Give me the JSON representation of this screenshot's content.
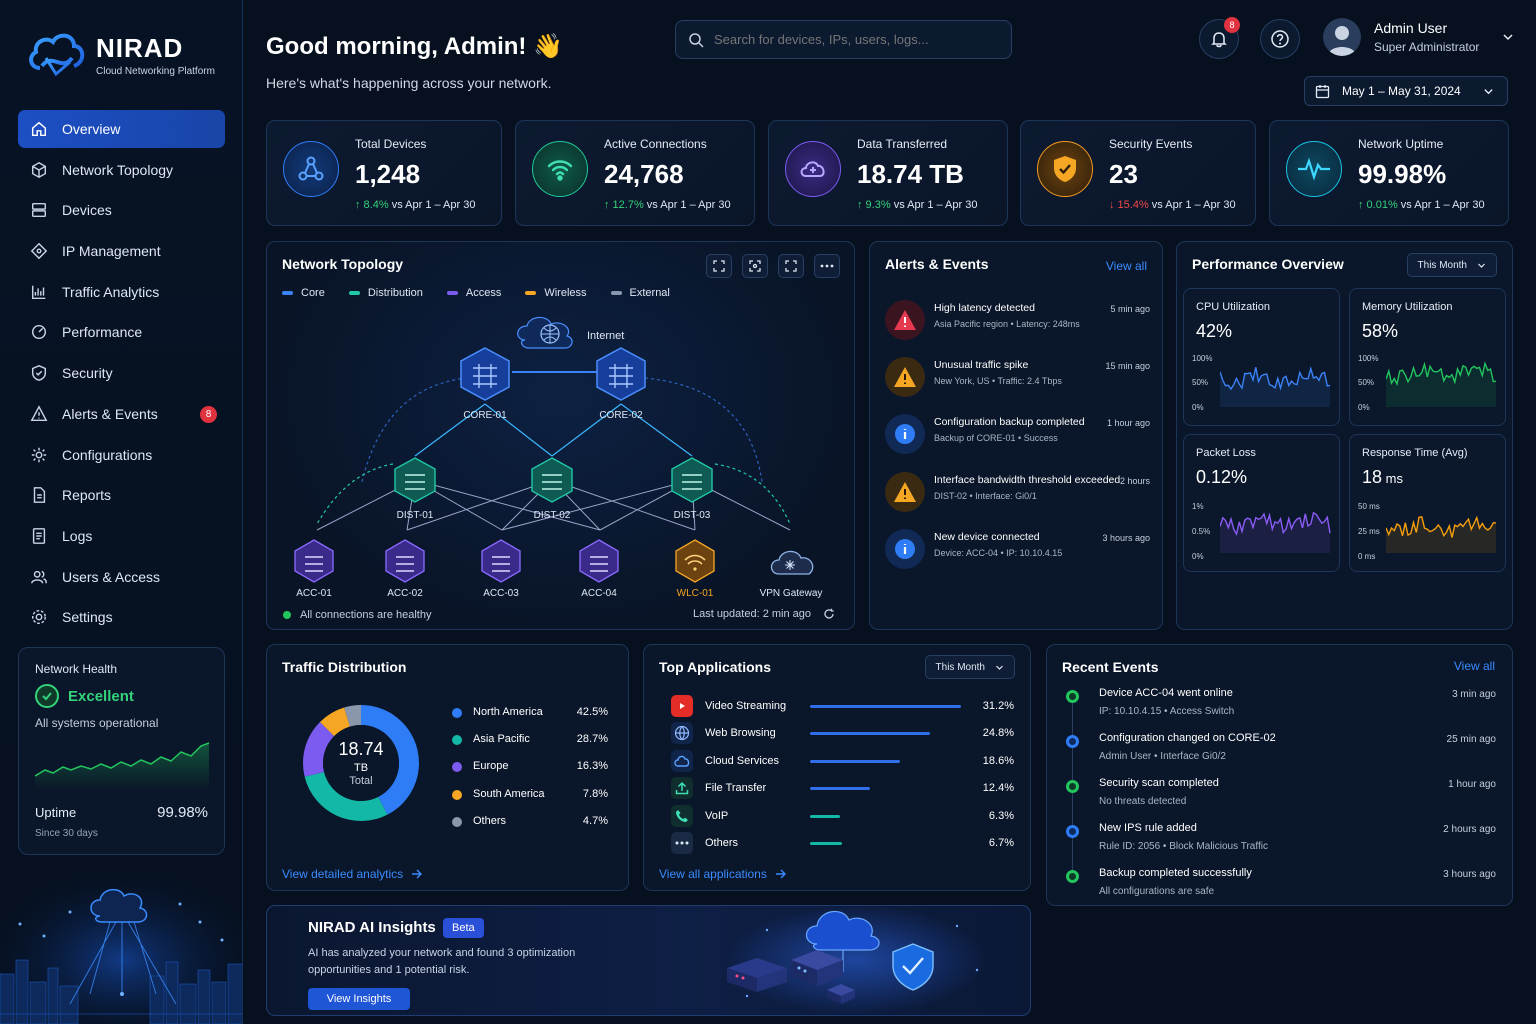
{
  "brand": {
    "name": "NIRAD",
    "tagline": "Cloud Networking Platform"
  },
  "nav": {
    "items": [
      {
        "label": "Overview",
        "icon": "home-icon"
      },
      {
        "label": "Network Topology",
        "icon": "topology-icon"
      },
      {
        "label": "Devices",
        "icon": "server-icon"
      },
      {
        "label": "IP Management",
        "icon": "ip-icon"
      },
      {
        "label": "Traffic Analytics",
        "icon": "chart-icon"
      },
      {
        "label": "Performance",
        "icon": "gauge-icon"
      },
      {
        "label": "Security",
        "icon": "shield-icon"
      },
      {
        "label": "Alerts & Events",
        "icon": "warning-icon",
        "badge": "8"
      },
      {
        "label": "Configurations",
        "icon": "gear-icon"
      },
      {
        "label": "Reports",
        "icon": "report-icon"
      },
      {
        "label": "Logs",
        "icon": "log-icon"
      },
      {
        "label": "Users & Access",
        "icon": "users-icon"
      },
      {
        "label": "Settings",
        "icon": "settings-icon"
      }
    ]
  },
  "health": {
    "title": "Network Health",
    "status": "Excellent",
    "sub": "All systems operational",
    "uptime_label": "Uptime",
    "uptime_value": "99.98%",
    "since": "Since 30 days"
  },
  "header": {
    "greeting": "Good morning, Admin! 👋",
    "subtitle": "Here's what's happening across your network.",
    "search_placeholder": "Search for devices, IPs, users, logs...",
    "notif_count": "8",
    "user_name": "Admin User",
    "user_role": "Super Administrator",
    "date_range": "May 1 – May 31, 2024"
  },
  "kpis": [
    {
      "label": "Total Devices",
      "value": "1,248",
      "change": "↑ 8.4%",
      "period": " vs Apr 1 – Apr 30",
      "dir": "up",
      "color": "#2f7df6"
    },
    {
      "label": "Active Connections",
      "value": "24,768",
      "change": "↑ 12.7%",
      "period": " vs Apr 1 – Apr 30",
      "dir": "up",
      "color": "#1fc99a"
    },
    {
      "label": "Data Transferred",
      "value": "18.74 TB",
      "change": "↑ 9.3%",
      "period": " vs Apr 1 – Apr 30",
      "dir": "up",
      "color": "#7b5cf0"
    },
    {
      "label": "Security Events",
      "value": "23",
      "change": "↓ 15.4%",
      "period": " vs Apr 1 – Apr 30",
      "dir": "down",
      "color": "#f29a1f"
    },
    {
      "label": "Network Uptime",
      "value": "99.98%",
      "change": "↑ 0.01%",
      "period": " vs Apr 1 – Apr 30",
      "dir": "up",
      "color": "#19c3e6"
    }
  ],
  "topology": {
    "title": "Network Topology",
    "legend": [
      {
        "label": "Core",
        "color": "#3b82f6"
      },
      {
        "label": "Distribution",
        "color": "#20c9a6"
      },
      {
        "label": "Access",
        "color": "#7c5cf0"
      },
      {
        "label": "Wireless",
        "color": "#f5a623"
      },
      {
        "label": "External",
        "color": "#8a96ab"
      }
    ],
    "nodes": {
      "internet": "Internet",
      "core1": "CORE-01",
      "core2": "CORE-02",
      "dist1": "DIST-01",
      "dist2": "DIST-02",
      "dist3": "DIST-03",
      "acc1": "ACC-01",
      "acc2": "ACC-02",
      "acc3": "ACC-03",
      "acc4": "ACC-04",
      "wlc": "WLC-01",
      "vpn": "VPN Gateway"
    },
    "status": "All connections are healthy",
    "updated": "Last updated: 2 min ago"
  },
  "alerts": {
    "title": "Alerts & Events",
    "view_all": "View all",
    "items": [
      {
        "title": "High latency detected",
        "sub": "Asia Pacific region • Latency: 248ms",
        "time": "5 min ago",
        "kind": "critical"
      },
      {
        "title": "Unusual traffic spike",
        "sub": "New York, US • Traffic: 2.4 Tbps",
        "time": "15 min ago",
        "kind": "warning"
      },
      {
        "title": "Configuration backup completed",
        "sub": "Backup of CORE-01 • Success",
        "time": "1 hour ago",
        "kind": "info"
      },
      {
        "title": "Interface bandwidth threshold exceeded",
        "sub": "DIST-02 • Interface: Gi0/1",
        "time": "2 hours",
        "kind": "warning"
      },
      {
        "title": "New device connected",
        "sub": "Device: ACC-04 • IP: 10.10.4.15",
        "time": "3 hours ago",
        "kind": "info"
      }
    ]
  },
  "performance": {
    "title": "Performance Overview",
    "period": "This Month",
    "metrics": [
      {
        "label": "CPU Utilization",
        "value": "42%",
        "unit": "",
        "axis": [
          "100%",
          "50%",
          "0%"
        ],
        "color": "#3b82f6"
      },
      {
        "label": "Memory Utilization",
        "value": "58%",
        "unit": "",
        "axis": [
          "100%",
          "50%",
          "0%"
        ],
        "color": "#22c55e"
      },
      {
        "label": "Packet Loss",
        "value": "0.12%",
        "unit": "",
        "axis": [
          "1%",
          "0.5%",
          "0%"
        ],
        "color": "#8b5cf6"
      },
      {
        "label": "Response Time (Avg)",
        "value": "18",
        "unit": " ms",
        "axis": [
          "50 ms",
          "25 ms",
          "0 ms"
        ],
        "color": "#f59e0b"
      }
    ]
  },
  "traffic": {
    "title": "Traffic Distribution",
    "center_value": "18.74",
    "center_unit": "TB",
    "center_label": "Total",
    "link": "View detailed analytics",
    "chart_data": {
      "type": "pie",
      "categories": [
        "North America",
        "Asia Pacific",
        "Europe",
        "South America",
        "Others"
      ],
      "values": [
        42.5,
        28.7,
        16.3,
        7.8,
        4.7
      ],
      "labels": [
        "42.5%",
        "28.7%",
        "16.3%",
        "7.8%",
        "4.7%"
      ],
      "colors": [
        "#2f7df6",
        "#14b8a6",
        "#7c5cf0",
        "#f5a623",
        "#8a96ab"
      ]
    }
  },
  "apps": {
    "title": "Top Applications",
    "period": "This Month",
    "link": "View all applications",
    "items": [
      {
        "name": "Video Streaming",
        "pct": "31.2%",
        "value": 31.2,
        "color": "#2f6fea",
        "icon": "youtube-icon",
        "bg": "#e52d27"
      },
      {
        "name": "Web Browsing",
        "pct": "24.8%",
        "value": 24.8,
        "color": "#2f6fea",
        "icon": "globe-icon",
        "bg": "#11254a"
      },
      {
        "name": "Cloud Services",
        "pct": "18.6%",
        "value": 18.6,
        "color": "#2f6fea",
        "icon": "cloud-icon",
        "bg": "#11254a"
      },
      {
        "name": "File Transfer",
        "pct": "12.4%",
        "value": 12.4,
        "color": "#2f6fea",
        "icon": "upload-icon",
        "bg": "#0f2e2d"
      },
      {
        "name": "VoIP",
        "pct": "6.3%",
        "value": 6.3,
        "color": "#14b8a6",
        "icon": "phone-icon",
        "bg": "#0f2e2d"
      },
      {
        "name": "Others",
        "pct": "6.7%",
        "value": 6.7,
        "color": "#14b8a6",
        "icon": "more-icon",
        "bg": "#1a2a44"
      }
    ]
  },
  "recent": {
    "title": "Recent Events",
    "view_all": "View all",
    "items": [
      {
        "title": "Device ACC-04 went online",
        "sub": "IP: 10.10.4.15 • Access Switch",
        "time": "3 min ago",
        "color": "#22c55e"
      },
      {
        "title": "Configuration changed on CORE-02",
        "sub": "Admin User • Interface Gi0/2",
        "time": "25 min ago",
        "color": "#2f7df6"
      },
      {
        "title": "Security scan completed",
        "sub": "No threats detected",
        "time": "1 hour ago",
        "color": "#22c55e"
      },
      {
        "title": "New IPS rule added",
        "sub": "Rule ID: 2056 • Block Malicious Traffic",
        "time": "2 hours ago",
        "color": "#2f7df6"
      },
      {
        "title": "Backup completed successfully",
        "sub": "All configurations are safe",
        "time": "3 hours ago",
        "color": "#22c55e"
      }
    ]
  },
  "ai": {
    "title": "NIRAD AI Insights",
    "badge": "Beta",
    "text1": "AI has analyzed your network and found 3 optimization",
    "text2": "opportunities and 1 potential risk.",
    "button": "View Insights"
  }
}
